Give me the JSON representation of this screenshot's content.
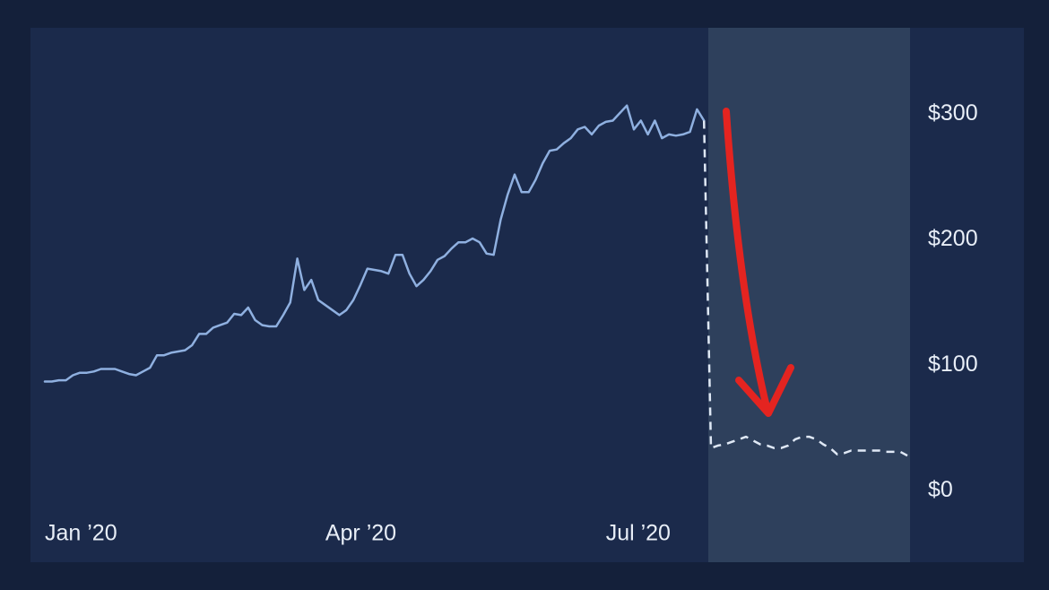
{
  "chart_data": {
    "type": "line",
    "categories": [
      "Jan ’20",
      null,
      null,
      null,
      null,
      null,
      null,
      null,
      null,
      null,
      null,
      null,
      null,
      null,
      null,
      null,
      null,
      null,
      null,
      null,
      null,
      null,
      null,
      null,
      null,
      null,
      null,
      null,
      null,
      null,
      null,
      null,
      null,
      null,
      null,
      null,
      null,
      null,
      null,
      null,
      "Apr ’20",
      null,
      null,
      null,
      null,
      null,
      null,
      null,
      null,
      null,
      null,
      null,
      null,
      null,
      null,
      null,
      null,
      null,
      null,
      null,
      null,
      null,
      null,
      null,
      null,
      null,
      null,
      null,
      null,
      null,
      null,
      null,
      null,
      null,
      null,
      null,
      null,
      null,
      null,
      null,
      "Jul ’20",
      null,
      null,
      null,
      null,
      null,
      null,
      null,
      null,
      null,
      null,
      null,
      null,
      null,
      null,
      null,
      null,
      null,
      null,
      null,
      null,
      null,
      null,
      null,
      null,
      null,
      null,
      null,
      null,
      null,
      null,
      null,
      null,
      null,
      null,
      null,
      null,
      null,
      null,
      null,
      null,
      null,
      null,
      null
    ],
    "series": [
      {
        "color": "#8fb0e0",
        "dashed": false,
        "values": [
          87,
          87,
          88,
          88,
          92,
          94,
          94,
          95,
          97,
          97,
          97,
          95,
          93,
          92,
          95,
          98,
          108,
          108,
          110,
          111,
          112,
          116,
          125,
          125,
          130,
          132,
          134,
          141,
          140,
          146,
          136,
          132,
          131,
          131,
          140,
          150,
          185,
          160,
          168,
          152,
          148,
          144,
          140,
          144,
          152,
          164,
          177,
          176,
          175,
          173,
          188,
          188,
          173,
          163,
          168,
          175,
          184,
          187,
          193,
          198,
          198,
          201,
          198,
          189,
          188,
          216,
          236,
          252,
          238,
          238,
          248,
          261,
          271,
          272,
          277,
          281,
          288,
          290,
          284,
          291,
          294,
          295,
          301,
          307,
          288,
          295,
          284,
          295,
          281,
          284,
          283,
          284,
          286,
          304,
          295,
          null,
          null,
          null,
          null,
          null,
          null,
          null,
          null,
          null,
          null,
          null,
          null,
          null,
          null,
          null,
          null,
          null,
          null,
          null,
          null,
          null,
          null,
          null,
          null,
          null,
          null,
          null,
          null,
          null
        ]
      },
      {
        "color": "#dfe8f5",
        "dashed": true,
        "values": [
          null,
          null,
          null,
          null,
          null,
          null,
          null,
          null,
          null,
          null,
          null,
          null,
          null,
          null,
          null,
          null,
          null,
          null,
          null,
          null,
          null,
          null,
          null,
          null,
          null,
          null,
          null,
          null,
          null,
          null,
          null,
          null,
          null,
          null,
          null,
          null,
          null,
          null,
          null,
          null,
          null,
          null,
          null,
          null,
          null,
          null,
          null,
          null,
          null,
          null,
          null,
          null,
          null,
          null,
          null,
          null,
          null,
          null,
          null,
          null,
          null,
          null,
          null,
          null,
          null,
          null,
          null,
          null,
          null,
          null,
          null,
          null,
          null,
          null,
          null,
          null,
          null,
          null,
          null,
          null,
          null,
          null,
          null,
          null,
          null,
          null,
          null,
          null,
          null,
          null,
          null,
          null,
          null,
          null,
          295,
          34,
          36,
          37,
          39,
          41,
          43,
          40,
          37,
          36,
          34,
          34,
          36,
          41,
          43,
          43,
          41,
          37,
          34,
          29,
          30,
          32,
          32,
          32,
          32,
          32,
          31,
          31,
          31,
          28
        ]
      }
    ],
    "ylim": [
      -57,
      369
    ],
    "yticks": [
      {
        "value": 300,
        "label": "$300"
      },
      {
        "value": 200,
        "label": "$200"
      },
      {
        "value": 100,
        "label": "$100"
      },
      {
        "value": 0,
        "label": "$0"
      }
    ],
    "grid": false
  }
}
